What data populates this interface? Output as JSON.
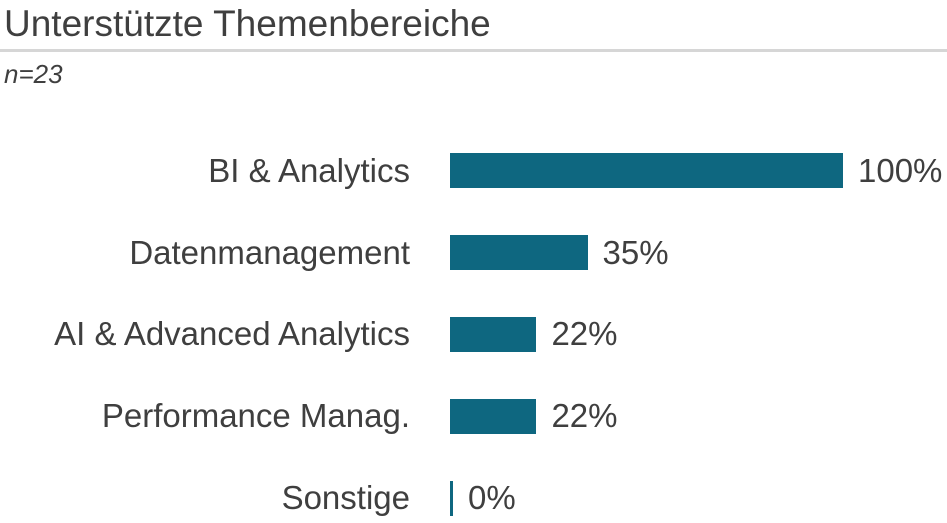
{
  "header": {
    "title": "Unterstützte Themenbereiche",
    "sample_note": "n=23"
  },
  "colors": {
    "bar": "#0e6780",
    "text": "#3f3f3f",
    "divider": "#d6d6d6",
    "background": "#ffffff"
  },
  "chart_data": {
    "type": "bar",
    "orientation": "horizontal",
    "title": "Unterstützte Themenbereiche",
    "subtitle": "n=23",
    "categories": [
      "BI & Analytics",
      "Datenmanagement",
      "AI & Advanced Analytics",
      "Performance Manag.",
      "Sonstige"
    ],
    "values": [
      100,
      35,
      22,
      22,
      0
    ],
    "value_labels": [
      "100%",
      "35%",
      "22%",
      "22%",
      "0%"
    ],
    "unit": "%",
    "xlim": [
      0,
      100
    ],
    "grid": false,
    "legend": false,
    "bar_color": "#0e6780",
    "label_position": "end-of-bar"
  }
}
